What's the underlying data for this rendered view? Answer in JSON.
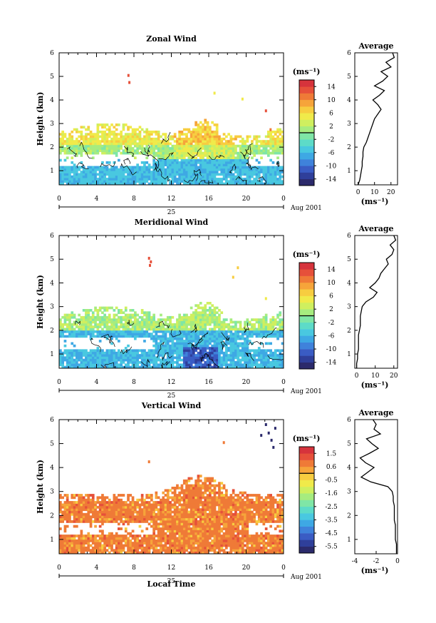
{
  "figure": {
    "bottom_label": "Local Time",
    "date_label": "Aug 2001",
    "day_label": "25"
  },
  "chart_data": [
    {
      "type": "heatmap",
      "title": "Zonal Wind",
      "ylabel": "Height (km)",
      "xlabel": "Local Time",
      "x_ticks": [
        "0",
        "4",
        "8",
        "12",
        "16",
        "20",
        "0"
      ],
      "xlim": [
        0,
        24
      ],
      "y_ticks": [
        "1",
        "2",
        "3",
        "4",
        "5",
        "6"
      ],
      "ylim": [
        0.4,
        6
      ],
      "colorbar": {
        "unit": "(ms⁻¹)",
        "labels": [
          "14",
          "10",
          "6",
          "2",
          "-2",
          "-6",
          "-10",
          "-14"
        ],
        "range": [
          -16,
          16
        ],
        "colors": [
          "#2b2a6b",
          "#2f3f9a",
          "#3a5cc4",
          "#3f82db",
          "#3ea8e4",
          "#49c8e0",
          "#5ddbc8",
          "#7fe6a6",
          "#a6ec7f",
          "#cfef5f",
          "#f0ea4a",
          "#f7cd40",
          "#f6a43a",
          "#ef7a37",
          "#e6503a",
          "#d6333c"
        ]
      },
      "profile": {
        "title": "Average",
        "xlabel": "(ms⁻¹)",
        "x_ticks": [
          "0",
          "10",
          "20"
        ],
        "xlim": [
          -2,
          24
        ],
        "heights": [
          0.4,
          0.6,
          0.8,
          1.0,
          1.2,
          1.4,
          1.6,
          1.8,
          2.0,
          2.2,
          2.4,
          2.6,
          2.8,
          3.0,
          3.2,
          3.4,
          3.6,
          3.8,
          4.0,
          4.2,
          4.4,
          4.6,
          4.8,
          5.0,
          5.2,
          5.4,
          5.6,
          5.8,
          6.0
        ],
        "values": [
          0,
          1,
          1.5,
          2,
          2.5,
          2.5,
          3,
          3,
          3.5,
          5,
          6,
          7,
          8,
          9,
          10,
          12,
          14,
          12,
          9,
          13,
          16,
          10,
          15,
          18,
          14,
          20,
          17,
          22,
          21
        ]
      }
    },
    {
      "type": "heatmap",
      "title": "Meridional Wind",
      "ylabel": "Height (km)",
      "xlabel": "Local Time",
      "x_ticks": [
        "0",
        "4",
        "8",
        "12",
        "16",
        "20",
        "0"
      ],
      "xlim": [
        0,
        24
      ],
      "y_ticks": [
        "1",
        "2",
        "3",
        "4",
        "5",
        "6"
      ],
      "ylim": [
        0.4,
        6
      ],
      "colorbar": {
        "unit": "(ms⁻¹)",
        "labels": [
          "14",
          "10",
          "6",
          "2",
          "-2",
          "-6",
          "-10",
          "-14"
        ],
        "range": [
          -16,
          16
        ],
        "colors": [
          "#2b2a6b",
          "#2f3f9a",
          "#3a5cc4",
          "#3f82db",
          "#3ea8e4",
          "#49c8e0",
          "#5ddbc8",
          "#7fe6a6",
          "#a6ec7f",
          "#cfef5f",
          "#f0ea4a",
          "#f7cd40",
          "#f6a43a",
          "#ef7a37",
          "#e6503a",
          "#d6333c"
        ]
      },
      "profile": {
        "title": "Average",
        "xlabel": "(ms⁻¹)",
        "x_ticks": [
          "0",
          "10",
          "20"
        ],
        "xlim": [
          -1,
          22
        ],
        "heights": [
          0.4,
          0.6,
          0.8,
          1.0,
          1.2,
          1.4,
          1.6,
          1.8,
          2.0,
          2.2,
          2.4,
          2.6,
          2.8,
          3.0,
          3.2,
          3.4,
          3.6,
          3.8,
          4.0,
          4.2,
          4.4,
          4.6,
          4.8,
          5.0,
          5.2,
          5.4,
          5.6,
          5.8,
          6.0
        ],
        "values": [
          0,
          0,
          0.5,
          0.5,
          1,
          1,
          1,
          1,
          1.5,
          2,
          2,
          2,
          2.5,
          3,
          5,
          9,
          11,
          7,
          10,
          12,
          13,
          15,
          17,
          16,
          19,
          20,
          18,
          21,
          20
        ]
      }
    },
    {
      "type": "heatmap",
      "title": "Vertical Wind",
      "ylabel": "Height (km)",
      "xlabel": "Local Time",
      "x_ticks": [
        "0",
        "4",
        "8",
        "12",
        "16",
        "20",
        "0"
      ],
      "xlim": [
        0,
        24
      ],
      "y_ticks": [
        "1",
        "2",
        "3",
        "4",
        "5",
        "6"
      ],
      "ylim": [
        0.4,
        6
      ],
      "colorbar": {
        "unit": "(ms⁻¹)",
        "labels": [
          "1.5",
          "0.6",
          "-0.5",
          "-1.6",
          "-2.5",
          "-3.5",
          "-4.5",
          "-5.5"
        ],
        "range": [
          -6,
          2
        ],
        "colors": [
          "#2b2a6b",
          "#2f3f9a",
          "#3a5cc4",
          "#3f82db",
          "#3ea8e4",
          "#49c8e0",
          "#5ddbc8",
          "#7fe6a6",
          "#a6ec7f",
          "#cfef5f",
          "#f0ea4a",
          "#f7cd40",
          "#f6a43a",
          "#ef7a37",
          "#e6503a",
          "#d6333c"
        ]
      },
      "profile": {
        "title": "Average",
        "xlabel": "(ms⁻¹)",
        "x_ticks": [
          "-4",
          "-2",
          "0"
        ],
        "xlim": [
          -4,
          0
        ],
        "heights": [
          0.4,
          0.6,
          0.8,
          1.0,
          1.2,
          1.4,
          1.6,
          1.8,
          2.0,
          2.2,
          2.4,
          2.6,
          2.8,
          3.0,
          3.2,
          3.4,
          3.6,
          3.8,
          4.0,
          4.2,
          4.4,
          4.6,
          4.8,
          5.0,
          5.2,
          5.4,
          5.6,
          5.8,
          6.0
        ],
        "values": [
          -0.1,
          -0.1,
          -0.1,
          -0.2,
          -0.2,
          -0.2,
          -0.2,
          -0.3,
          -0.3,
          -0.3,
          -0.3,
          -0.4,
          -0.4,
          -0.5,
          -0.9,
          -2.5,
          -3.4,
          -2.8,
          -2.2,
          -3.0,
          -3.5,
          -2.6,
          -1.8,
          -2.4,
          -2.9,
          -1.6,
          -2.2,
          -2.0,
          -2.3
        ]
      }
    }
  ]
}
